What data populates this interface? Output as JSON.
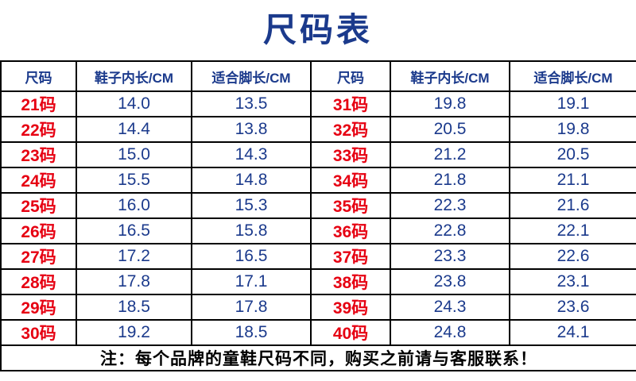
{
  "title": "尺码表",
  "table": {
    "headers": [
      "尺码",
      "鞋子内长/CM",
      "适合脚长/CM",
      "尺码",
      "鞋子内长/CM",
      "适合脚长/CM"
    ],
    "rows": [
      [
        "21码",
        "14.0",
        "13.5",
        "31码",
        "19.8",
        "19.1"
      ],
      [
        "22码",
        "14.4",
        "13.8",
        "32码",
        "20.5",
        "19.8"
      ],
      [
        "23码",
        "15.0",
        "14.3",
        "33码",
        "21.2",
        "20.5"
      ],
      [
        "24码",
        "15.5",
        "14.8",
        "34码",
        "21.8",
        "21.1"
      ],
      [
        "25码",
        "16.0",
        "15.3",
        "35码",
        "22.3",
        "21.6"
      ],
      [
        "26码",
        "16.5",
        "15.8",
        "36码",
        "22.8",
        "22.1"
      ],
      [
        "27码",
        "17.2",
        "16.5",
        "37码",
        "23.3",
        "22.6"
      ],
      [
        "28码",
        "17.8",
        "17.1",
        "38码",
        "23.8",
        "23.1"
      ],
      [
        "29码",
        "18.5",
        "17.8",
        "39码",
        "24.3",
        "23.6"
      ],
      [
        "30码",
        "19.2",
        "18.5",
        "40码",
        "24.8",
        "24.1"
      ]
    ],
    "note": "注：每个品牌的童鞋尺码不同，购买之前请与客服联系！"
  },
  "colors": {
    "title_and_values": "#1b3a8c",
    "size_labels": "#e60012",
    "border": "#000000",
    "background": "#ffffff"
  }
}
